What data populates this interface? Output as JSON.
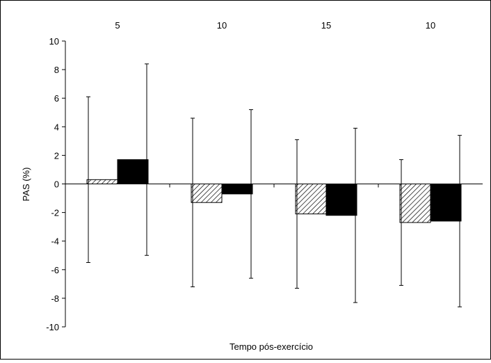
{
  "chart_data": {
    "type": "bar",
    "title": "",
    "xlabel": "Tempo pós-exercício",
    "ylabel": "PAS (%)",
    "categories": [
      "5",
      "10",
      "15",
      "10"
    ],
    "category_label_placement": "top",
    "ylim": [
      -10,
      10
    ],
    "yticks": [
      -10,
      -8,
      -6,
      -4,
      -2,
      0,
      2,
      4,
      6,
      8,
      10
    ],
    "ytick_labels": [
      "-10",
      "-8",
      "-6",
      "-4",
      "-2",
      "0",
      "2",
      "4",
      "6",
      "8",
      "10"
    ],
    "grid": false,
    "legend": "none",
    "series": [
      {
        "style": "hatched",
        "fill": "#ffffff",
        "stroke": "#000000",
        "values": [
          0.3,
          -1.3,
          -2.1,
          -2.7
        ],
        "error_upper": [
          6.1,
          4.6,
          3.1,
          1.7
        ],
        "error_lower": [
          -5.5,
          -7.2,
          -7.3,
          -7.1
        ]
      },
      {
        "style": "solid",
        "fill": "#000000",
        "stroke": "#000000",
        "values": [
          1.7,
          -0.7,
          -2.2,
          -2.6
        ],
        "error_upper": [
          8.4,
          5.2,
          3.9,
          3.4
        ],
        "error_lower": [
          -5.0,
          -6.6,
          -8.3,
          -8.6
        ]
      }
    ]
  }
}
